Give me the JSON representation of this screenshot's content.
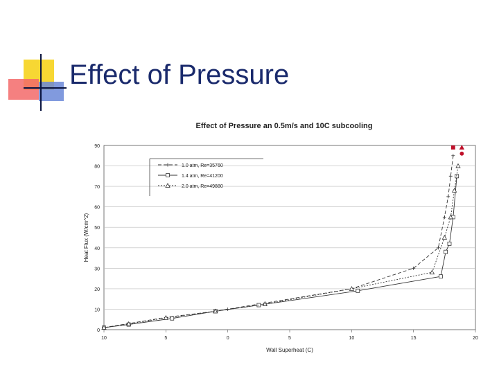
{
  "slide": {
    "title": "Effect of Pressure"
  },
  "chart_data": {
    "type": "line",
    "title": "Effect of Pressure an 0.5m/s and 10C subcooling",
    "xlabel": "Wall Superheat (C)",
    "ylabel": "Heat Flux (W/cm^2)",
    "xlim": [
      -10,
      20
    ],
    "ylim": [
      0,
      90
    ],
    "x_ticks": [
      -10,
      -5,
      0,
      5,
      10,
      15,
      20
    ],
    "x_tick_labels": [
      "10",
      "5",
      "0",
      "5",
      "10",
      "15",
      "20"
    ],
    "y_ticks": [
      0,
      10,
      20,
      30,
      40,
      50,
      60,
      70,
      80,
      90
    ],
    "y_tick_labels": [
      "0",
      "10",
      "20",
      "30",
      "40",
      "50",
      "60",
      "70",
      "80",
      "90"
    ],
    "grid": "horizontal",
    "legend_placement": "upper-left",
    "series": [
      {
        "name": "1.0 atm, Re=35760",
        "marker": "plus",
        "dash": "5,3",
        "color": "#333333",
        "x": [
          -10,
          -8,
          -5,
          -1,
          0,
          3,
          10,
          15,
          17,
          17.5,
          17.8,
          18,
          18.2
        ],
        "y": [
          1,
          3,
          6,
          9,
          10,
          13,
          20,
          30,
          40,
          55,
          65,
          75,
          85
        ]
      },
      {
        "name": "1.4 atm, Re=41200",
        "marker": "square",
        "dash": "none",
        "color": "#333333",
        "x": [
          -10,
          -8,
          -4.5,
          -1,
          2.5,
          10.5,
          17.2,
          17.6,
          17.9,
          18.2,
          18.5
        ],
        "y": [
          1,
          2.5,
          5.5,
          9,
          12,
          19,
          26,
          38,
          42,
          55,
          75
        ]
      },
      {
        "name": "2.0 atm, Re=49880",
        "marker": "triangle",
        "dash": "2,2",
        "color": "#333333",
        "x": [
          -10,
          -8,
          -5,
          -1,
          3,
          10,
          16.5,
          17.5,
          18,
          18.3,
          18.6
        ],
        "y": [
          1,
          2.8,
          5.8,
          9,
          12.5,
          20,
          28,
          45,
          55,
          68,
          80
        ]
      }
    ],
    "highlight_points": [
      {
        "x": 18.2,
        "y": 89,
        "color": "#c0102a",
        "marker": "square"
      },
      {
        "x": 18.9,
        "y": 89,
        "color": "#c0102a",
        "marker": "triangle"
      },
      {
        "x": 18.9,
        "y": 86,
        "color": "#c0102a",
        "marker": "circle"
      }
    ]
  }
}
